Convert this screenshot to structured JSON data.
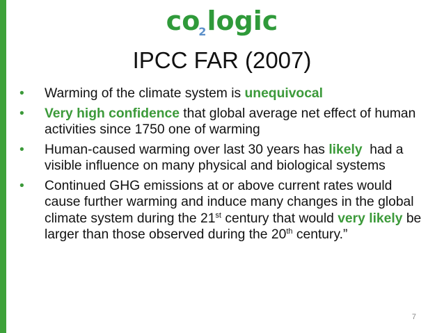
{
  "logo": {
    "part1": "c",
    "part2": "o",
    "sub": "2",
    "part3": "logic"
  },
  "title": "IPCC FAR (2007)",
  "bullet_glyph": "•",
  "bullets": [
    {
      "a": "Warming of the climate system is ",
      "hl": "unequivocal"
    },
    {
      "hl": "Very high confidence",
      "a": " that global average net effect of human activities since 1750 one of warming"
    },
    {
      "a": "Human-caused warming over last 30 years has ",
      "hl": "likely",
      "b": "  had a visible influence on many physical and biological systems"
    },
    {
      "a": "Continued GHG emissions at or above current rates would cause further warming and induce many changes in the global climate system during the 21",
      "sup1": "st",
      "b": " century that would ",
      "hl": "very likely",
      "c": " be larger than those observed during the 20",
      "sup2": "th",
      "d": " century.”"
    }
  ],
  "page_number": "7",
  "colors": {
    "accent": "#3c9a3a",
    "bar": "#3ea23a",
    "logo_sub": "#5b8fc9"
  }
}
